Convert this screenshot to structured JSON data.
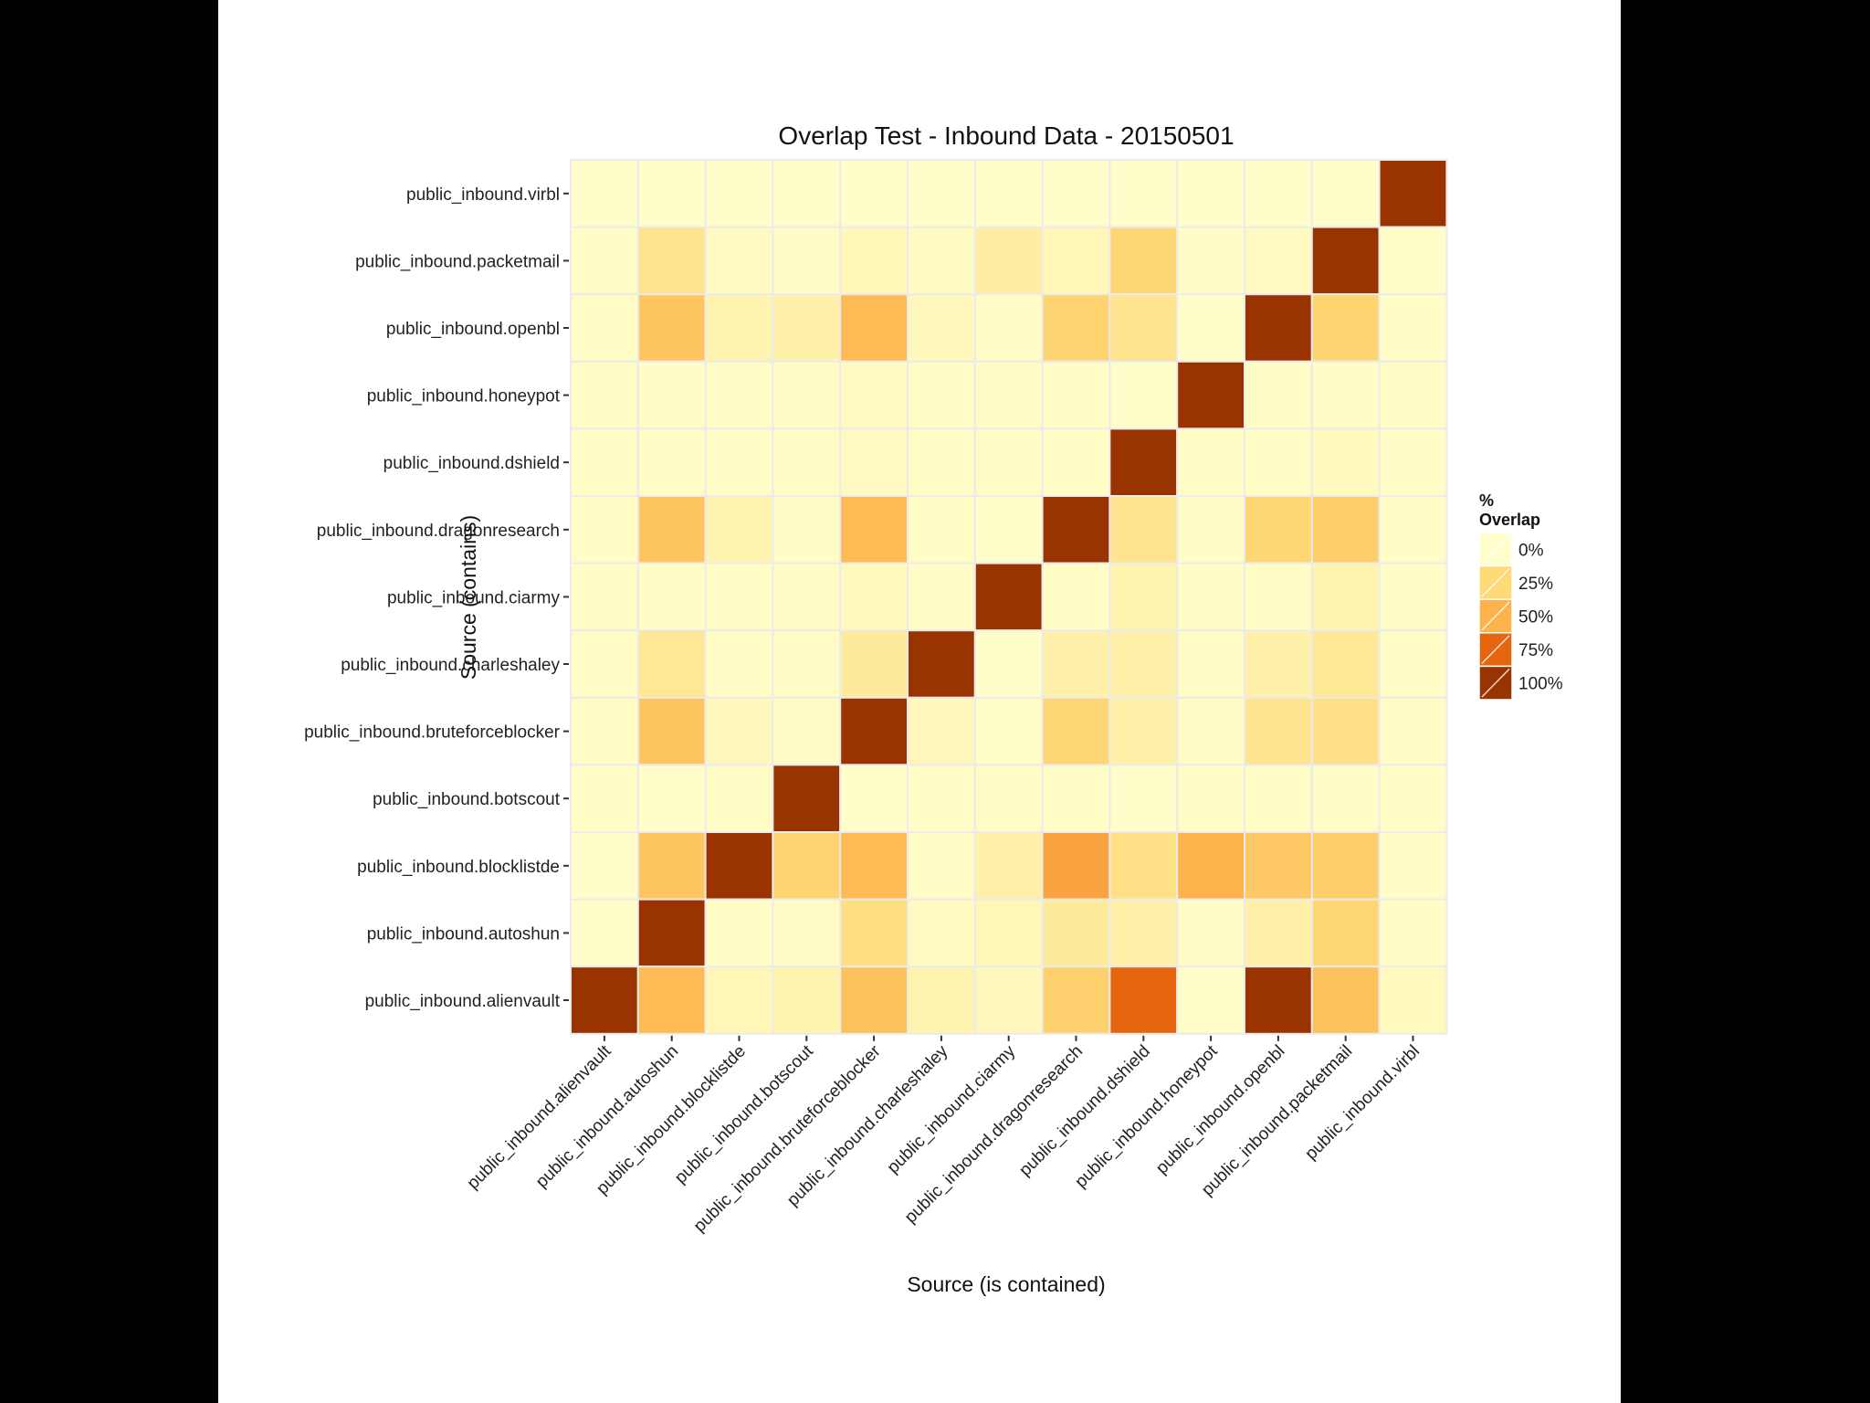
{
  "chart_data": {
    "type": "heatmap",
    "title": "Overlap Test - Inbound Data - 20150501",
    "xlabel": "Source (is contained)",
    "ylabel": "Source (contains)",
    "x_categories": [
      "public_inbound.alienvault",
      "public_inbound.autoshun",
      "public_inbound.blocklistde",
      "public_inbound.botscout",
      "public_inbound.bruteforceblocker",
      "public_inbound.charleshaley",
      "public_inbound.ciarmy",
      "public_inbound.dragonresearch",
      "public_inbound.dshield",
      "public_inbound.honeypot",
      "public_inbound.openbl",
      "public_inbound.packetmail",
      "public_inbound.virbl"
    ],
    "y_categories": [
      "public_inbound.virbl",
      "public_inbound.packetmail",
      "public_inbound.openbl",
      "public_inbound.honeypot",
      "public_inbound.dshield",
      "public_inbound.dragonresearch",
      "public_inbound.ciarmy",
      "public_inbound.charleshaley",
      "public_inbound.bruteforceblocker",
      "public_inbound.botscout",
      "public_inbound.blocklistde",
      "public_inbound.autoshun",
      "public_inbound.alienvault"
    ],
    "values_percent": [
      [
        1,
        1,
        1,
        1,
        1,
        1,
        1,
        1,
        1,
        1,
        1,
        1,
        100
      ],
      [
        2,
        18,
        3,
        2,
        6,
        3,
        12,
        6,
        26,
        2,
        3,
        100,
        1
      ],
      [
        2,
        38,
        8,
        10,
        45,
        5,
        2,
        28,
        18,
        1,
        100,
        28,
        2
      ],
      [
        2,
        2,
        2,
        2,
        3,
        2,
        2,
        2,
        1,
        100,
        2,
        2,
        2
      ],
      [
        2,
        2,
        2,
        2,
        3,
        2,
        2,
        2,
        100,
        2,
        2,
        4,
        2
      ],
      [
        2,
        38,
        8,
        2,
        45,
        2,
        1,
        100,
        18,
        2,
        26,
        32,
        2
      ],
      [
        2,
        2,
        2,
        2,
        4,
        2,
        100,
        2,
        8,
        2,
        2,
        8,
        2
      ],
      [
        2,
        16,
        2,
        2,
        14,
        100,
        1,
        10,
        10,
        2,
        10,
        16,
        2
      ],
      [
        2,
        38,
        5,
        2,
        100,
        5,
        1,
        26,
        10,
        2,
        18,
        20,
        2
      ],
      [
        2,
        1,
        2,
        100,
        1,
        2,
        2,
        2,
        1,
        2,
        2,
        2,
        2
      ],
      [
        1,
        38,
        100,
        28,
        45,
        2,
        10,
        55,
        20,
        50,
        36,
        32,
        2
      ],
      [
        1,
        100,
        2,
        2,
        22,
        3,
        6,
        14,
        10,
        2,
        10,
        26,
        2
      ],
      [
        100,
        45,
        6,
        8,
        40,
        8,
        5,
        30,
        75,
        1,
        100,
        40,
        4
      ]
    ],
    "legend": {
      "title_line1": "%",
      "title_line2": "Overlap",
      "labels": [
        "0%",
        "25%",
        "50%",
        "75%",
        "100%"
      ],
      "values": [
        0,
        25,
        50,
        75,
        100
      ],
      "colors": [
        "#FFFFCC",
        "#FED976",
        "#FEB24C",
        "#E6650F",
        "#993300"
      ]
    },
    "colors": {
      "panel_background": "#EBEBEB",
      "tile_border": "#EBEBEB"
    }
  }
}
